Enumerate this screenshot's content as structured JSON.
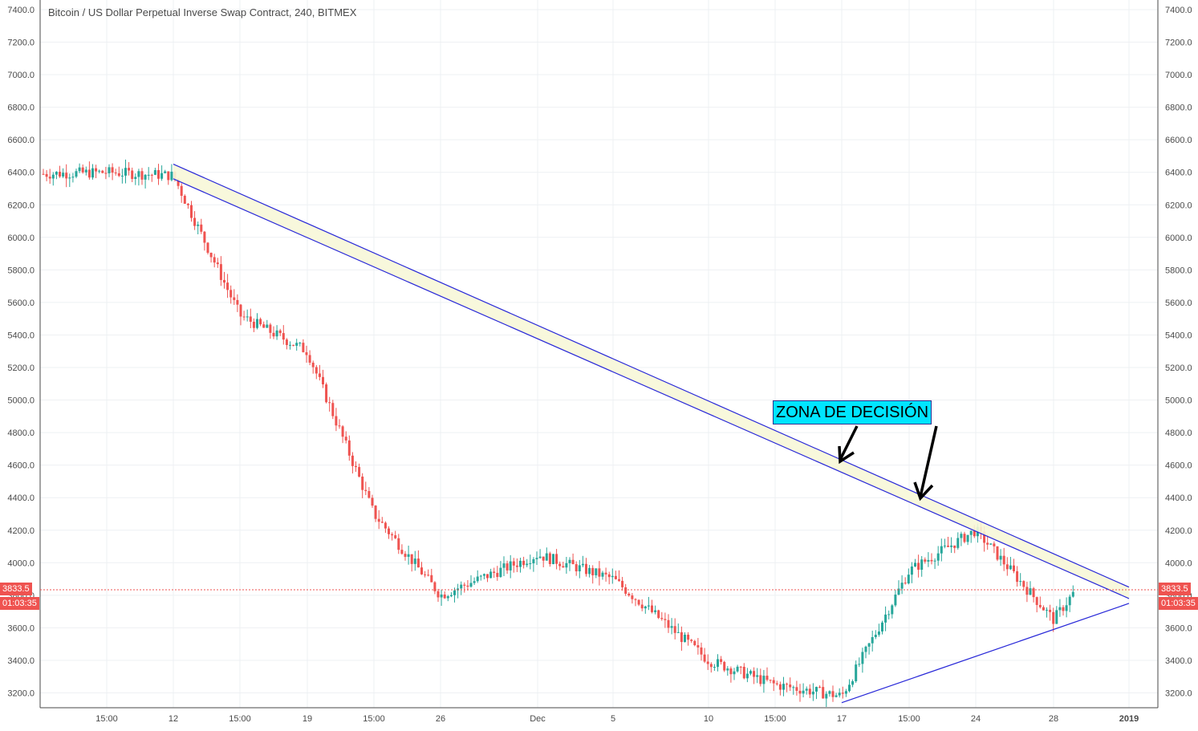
{
  "header": {
    "title": "Bitcoin / US Dollar Perpetual Inverse Swap Contract, 240, BITMEX"
  },
  "annotation": {
    "text": "ZONA DE DECISIÓN"
  },
  "last_price": {
    "value": "3833.5",
    "countdown": "01:03:35"
  },
  "colors": {
    "up": "#26a69a",
    "down": "#ef5350",
    "trendline": "#2828d8",
    "channel_fill": "#f7f7d8",
    "annotation_bg": "#00e5ff",
    "grid": "#eef0f3"
  },
  "chart_data": {
    "type": "candlestick",
    "title": "Bitcoin / US Dollar Perpetual Inverse Swap Contract, 240, BITMEX",
    "x_tick_labels": [
      "15:00",
      "12",
      "15:00",
      "19",
      "15:00",
      "26",
      "Dec",
      "5",
      "10",
      "15:00",
      "17",
      "15:00",
      "24",
      "28",
      "2019"
    ],
    "y_tick_labels": [
      "3200.0",
      "3400.0",
      "3600.0",
      "3800.0",
      "4000.0",
      "4200.0",
      "4400.0",
      "4600.0",
      "4800.0",
      "5000.0",
      "5200.0",
      "5400.0",
      "5600.0",
      "5800.0",
      "6000.0",
      "6200.0",
      "6400.0",
      "6600.0",
      "6800.0",
      "7000.0",
      "7200.0",
      "7400.0"
    ],
    "ylim": [
      3120,
      7420
    ],
    "grid": true,
    "price_path": [
      [
        "15:00",
        6400
      ],
      [
        "12",
        6380
      ],
      [
        "15:00",
        5520
      ],
      [
        "19",
        5300
      ],
      [
        "15:00",
        4300
      ],
      [
        "26",
        3800
      ],
      [
        "Dec",
        4050
      ],
      [
        "5",
        3900
      ],
      [
        "10",
        3400
      ],
      [
        "15:00",
        3250
      ],
      [
        "17",
        3180
      ],
      [
        "15:00",
        3950
      ],
      [
        "24",
        4200
      ],
      [
        "28",
        3650
      ],
      [
        "2019",
        3830
      ]
    ],
    "last_price": 3833.5,
    "trendlines": [
      {
        "from": [
          "12",
          6450
        ],
        "to": [
          "2019",
          3850
        ]
      },
      {
        "from": [
          "12",
          6360
        ],
        "to": [
          "2019",
          3780
        ]
      },
      {
        "from": [
          "17",
          3140
        ],
        "to": [
          "2019",
          3750
        ]
      }
    ]
  }
}
